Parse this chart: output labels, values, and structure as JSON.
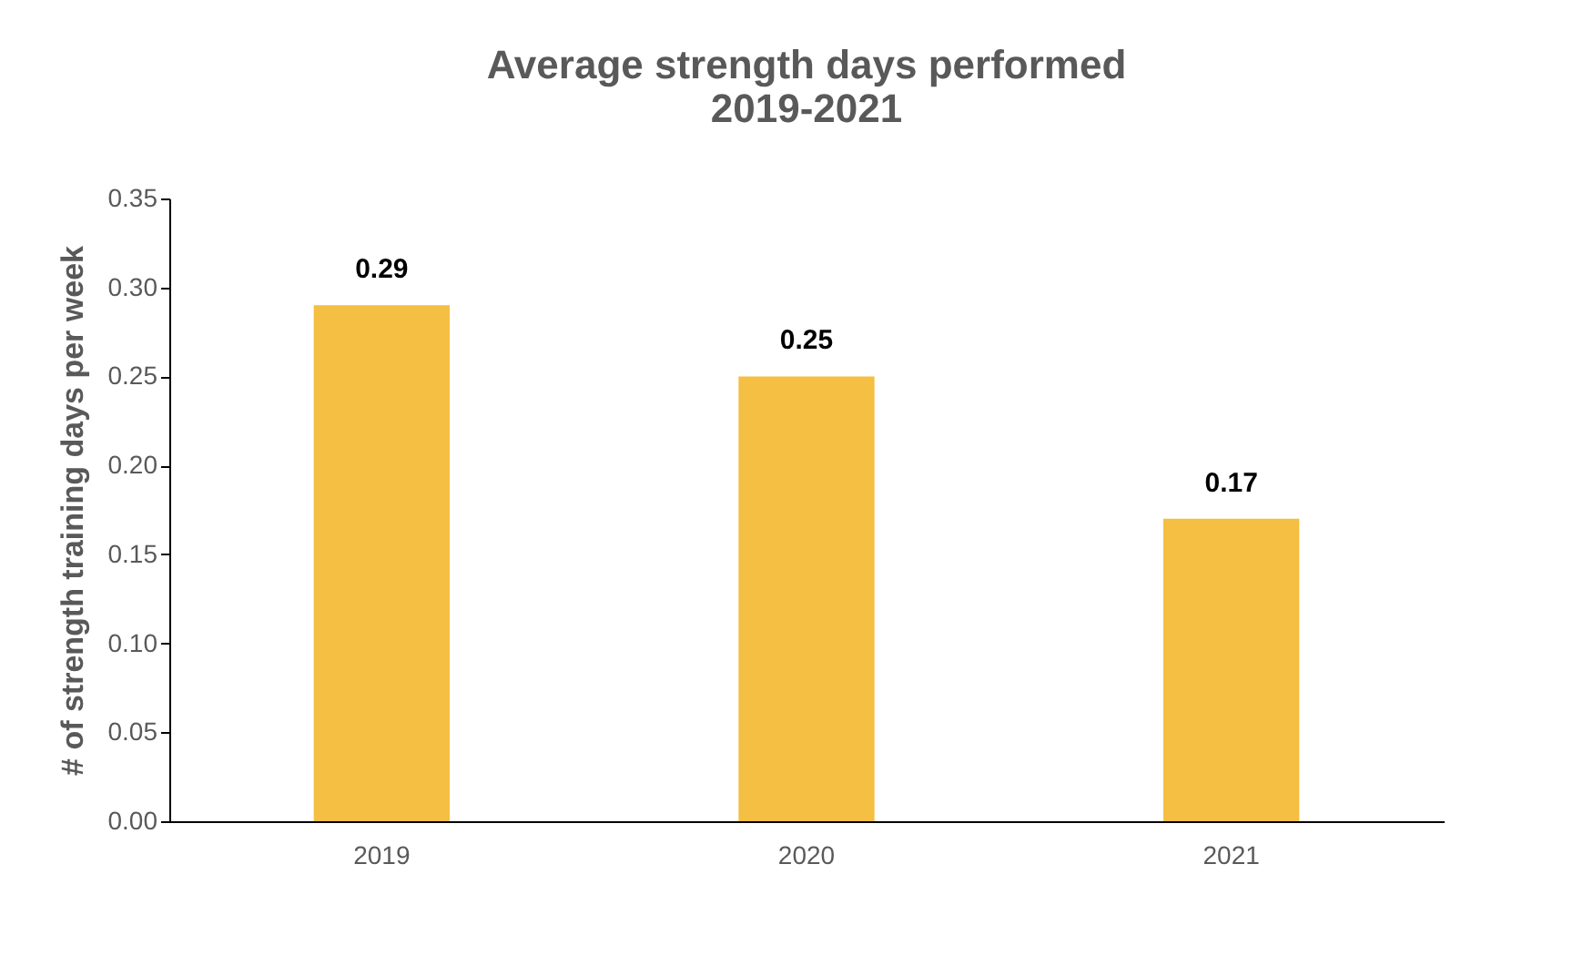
{
  "chart_data": {
    "type": "bar",
    "title": "Average strength days performed\n2019-2021",
    "ylabel": "# of strength training days per week",
    "categories": [
      "2019",
      "2020",
      "2021"
    ],
    "values": [
      0.29,
      0.25,
      0.17
    ],
    "color": "#f4bf42",
    "data_labels": true,
    "grid": false,
    "ylim": [
      0,
      0.35
    ],
    "yticks": [
      {
        "value": 0,
        "label": "0.00"
      },
      0.05,
      {
        "value": 0.1,
        "label": "0.10"
      },
      0.15,
      {
        "value": 0.2,
        "label": "0.20"
      },
      0.25,
      {
        "value": 0.3,
        "label": "0.30"
      },
      0.35
    ]
  }
}
